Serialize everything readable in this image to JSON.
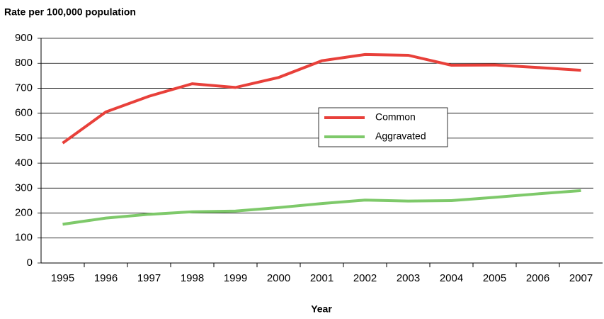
{
  "chart_data": {
    "type": "line",
    "title": "Rate per 100,000 population",
    "xlabel": "Year",
    "categories": [
      "1995",
      "1996",
      "1997",
      "1998",
      "1999",
      "2000",
      "2001",
      "2002",
      "2003",
      "2004",
      "2005",
      "2006",
      "2007"
    ],
    "series": [
      {
        "name": "Common",
        "color": "#e8403a",
        "values": [
          480,
          605,
          668,
          718,
          703,
          743,
          810,
          835,
          832,
          792,
          793,
          783,
          772
        ]
      },
      {
        "name": "Aggravated",
        "color": "#7ec96a",
        "values": [
          155,
          180,
          195,
          205,
          208,
          222,
          238,
          252,
          248,
          250,
          263,
          277,
          290
        ]
      }
    ],
    "ylim": [
      0,
      900
    ],
    "yticks": [
      0,
      100,
      200,
      300,
      400,
      500,
      600,
      700,
      800,
      900
    ],
    "grid": true,
    "legend": "center"
  }
}
